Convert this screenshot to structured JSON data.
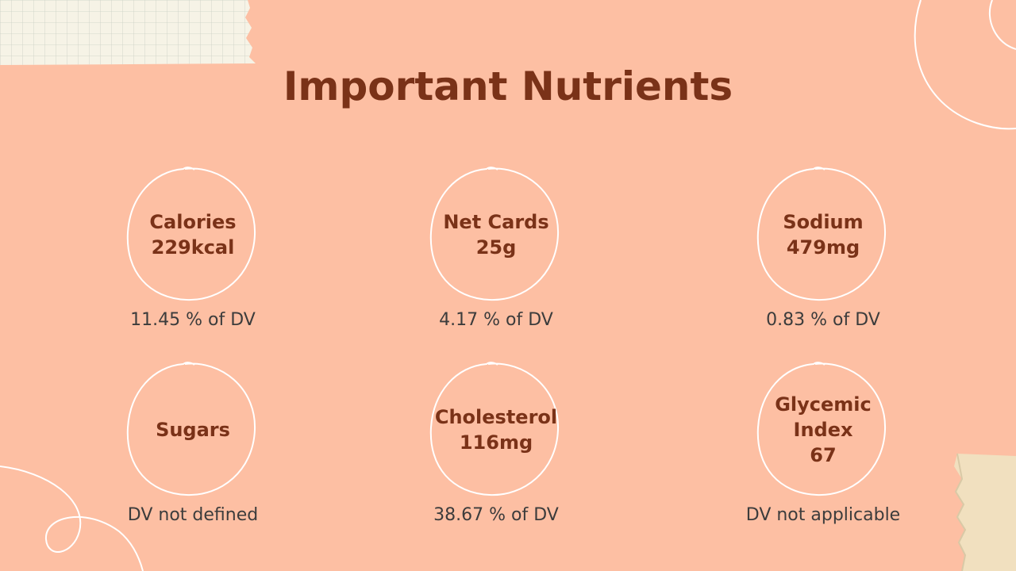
{
  "slide": {
    "title": "Important Nutrients"
  },
  "nutrients": [
    {
      "name": "Calories",
      "value": "229kcal",
      "dv": "11.45 % of DV"
    },
    {
      "name": "Net Cards",
      "value": "25g",
      "dv": "4.17 % of DV"
    },
    {
      "name": "Sodium",
      "value": "479mg",
      "dv": "0.83 % of DV"
    },
    {
      "name": "Sugars",
      "value": "",
      "dv": "DV not defined"
    },
    {
      "name": "Cholesterol",
      "value": "116mg",
      "dv": "38.67 % of DV"
    },
    {
      "name": "Glycemic Index",
      "value": "67",
      "dv": "DV not applicable"
    }
  ],
  "colors": {
    "background": "#fdbfa3",
    "accent": "#7a3218",
    "text": "#3c3c3c",
    "line": "#ffffff"
  }
}
